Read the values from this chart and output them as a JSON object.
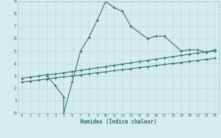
{
  "xlabel": "Humidex (Indice chaleur)",
  "line1_x": [
    3,
    4,
    5,
    5,
    6,
    7,
    8,
    9,
    10,
    11,
    12,
    13,
    15,
    16,
    17,
    19,
    20,
    21,
    22,
    23
  ],
  "line1_y": [
    3.0,
    2.2,
    1.3,
    0.0,
    2.5,
    5.0,
    6.1,
    7.5,
    9.0,
    8.5,
    8.2,
    7.0,
    6.0,
    6.2,
    6.2,
    5.0,
    5.1,
    5.1,
    4.9,
    5.1
  ],
  "line2_x": [
    0,
    1,
    2,
    3,
    4,
    5,
    6,
    7,
    8,
    9,
    10,
    11,
    12,
    13,
    14,
    15,
    16,
    17,
    18,
    19,
    20,
    21,
    22,
    23
  ],
  "line2_y": [
    2.8,
    2.9,
    3.0,
    3.1,
    3.15,
    3.25,
    3.35,
    3.45,
    3.55,
    3.65,
    3.75,
    3.85,
    3.95,
    4.05,
    4.15,
    4.25,
    4.35,
    4.45,
    4.55,
    4.65,
    4.75,
    4.85,
    4.92,
    5.0
  ],
  "line3_x": [
    0,
    1,
    2,
    3,
    4,
    5,
    6,
    7,
    8,
    9,
    10,
    11,
    12,
    13,
    14,
    15,
    16,
    17,
    18,
    19,
    20,
    21,
    22,
    23
  ],
  "line3_y": [
    2.5,
    2.58,
    2.67,
    2.75,
    2.84,
    2.92,
    3.0,
    3.08,
    3.17,
    3.25,
    3.33,
    3.42,
    3.5,
    3.58,
    3.67,
    3.75,
    3.83,
    3.92,
    4.0,
    4.08,
    4.17,
    4.25,
    4.33,
    4.42
  ],
  "line_color": "#2e6e63",
  "bg_color": "#d4ecec",
  "grid_color": "#b8d8d4",
  "xlim": [
    -0.5,
    23.5
  ],
  "ylim": [
    0,
    9
  ],
  "xticks": [
    0,
    1,
    2,
    3,
    4,
    5,
    6,
    7,
    8,
    9,
    10,
    11,
    12,
    13,
    14,
    15,
    16,
    17,
    18,
    19,
    20,
    21,
    22,
    23
  ],
  "yticks": [
    0,
    1,
    2,
    3,
    4,
    5,
    6,
    7,
    8,
    9
  ]
}
